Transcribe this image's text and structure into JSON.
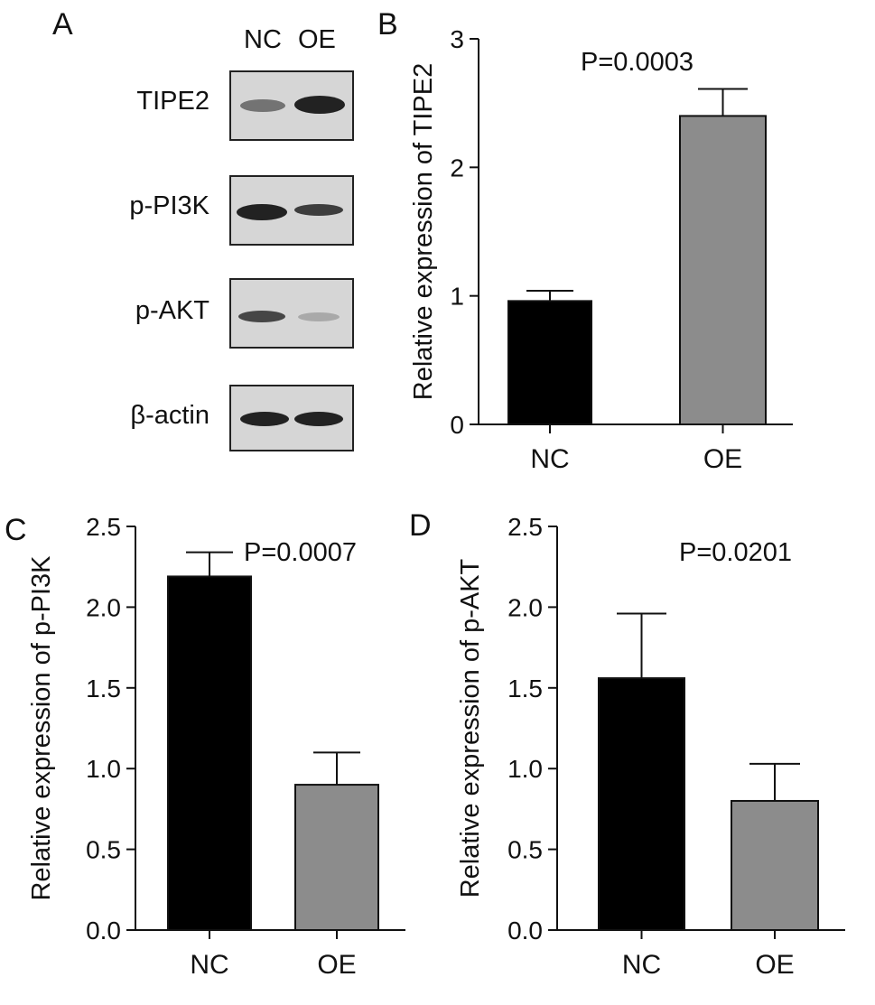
{
  "panels": {
    "a": "A",
    "b": "B",
    "c": "C",
    "d": "D"
  },
  "blot": {
    "lanes": [
      "NC",
      "OE"
    ],
    "rows": [
      "TIPE2",
      "p-PI3K",
      "p-AKT",
      "β-actin"
    ]
  },
  "chart_data": [
    {
      "panel": "B",
      "type": "bar",
      "categories": [
        "NC",
        "OE"
      ],
      "values": [
        0.96,
        2.4
      ],
      "errors": [
        0.08,
        0.21
      ],
      "colors": [
        "#000000",
        "#8c8c8c"
      ],
      "ylabel": "Relative expression of TIPE2",
      "annotation": "P=0.0003",
      "ylim": [
        0,
        3
      ],
      "yticks": [
        "0",
        "1",
        "2",
        "3"
      ]
    },
    {
      "panel": "C",
      "type": "bar",
      "categories": [
        "NC",
        "OE"
      ],
      "values": [
        2.19,
        0.9
      ],
      "errors": [
        0.15,
        0.2
      ],
      "colors": [
        "#000000",
        "#8c8c8c"
      ],
      "ylabel": "Relative expression of p-PI3K",
      "annotation": "P=0.0007",
      "ylim": [
        0,
        2.5
      ],
      "yticks": [
        "0.0",
        "0.5",
        "1.0",
        "1.5",
        "2.0",
        "2.5"
      ]
    },
    {
      "panel": "D",
      "type": "bar",
      "categories": [
        "NC",
        "OE"
      ],
      "values": [
        1.56,
        0.8
      ],
      "errors": [
        0.4,
        0.23
      ],
      "colors": [
        "#000000",
        "#8c8c8c"
      ],
      "ylabel": "Relative expression of p-AKT",
      "annotation": "P=0.0201",
      "ylim": [
        0,
        2.5
      ],
      "yticks": [
        "0.0",
        "0.5",
        "1.0",
        "1.5",
        "2.0",
        "2.5"
      ]
    }
  ]
}
